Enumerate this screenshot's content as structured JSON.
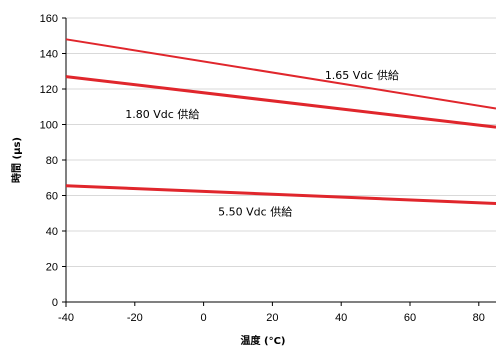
{
  "chart_data": {
    "type": "line",
    "title": "",
    "xlabel": "温度 (°C)",
    "ylabel": "時間 (µs)",
    "xlim": [
      -40,
      85
    ],
    "ylim": [
      0,
      160
    ],
    "x_ticks": [
      -40,
      -20,
      0,
      20,
      40,
      60,
      80
    ],
    "y_ticks": [
      0,
      20,
      40,
      60,
      80,
      100,
      120,
      140,
      160
    ],
    "grid": {
      "horizontal": true,
      "vertical": false
    },
    "line_color": "#e0262c",
    "series": [
      {
        "x": [
          -40,
          85
        ],
        "values": [
          148,
          109
        ]
      },
      {
        "x": [
          -40,
          85
        ],
        "values": [
          127,
          98.5
        ]
      },
      {
        "x": [
          -40,
          85
        ],
        "values": [
          65.5,
          55.5
        ]
      }
    ],
    "annotations": [
      {
        "text": "1.65 Vdc 供給",
        "x": 46,
        "y": 128
      },
      {
        "text": "1.80 Vdc 供給",
        "x": -12,
        "y": 106
      },
      {
        "text": "5.50 Vdc 供給",
        "x": 15,
        "y": 51
      }
    ]
  }
}
